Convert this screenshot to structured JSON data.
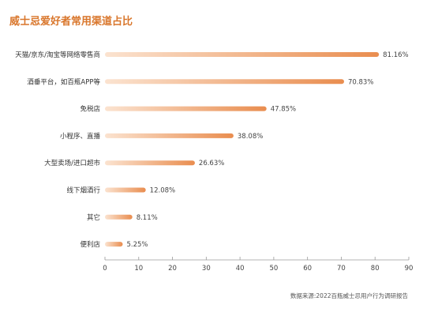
{
  "chart_data": {
    "type": "bar",
    "orientation": "horizontal",
    "title": "威士忌爱好者常用渠道占比",
    "categories": [
      "天猫/京东/淘宝等网络零售商",
      "酒垂平台，如百瓶APP等",
      "免税店",
      "小程序、直播",
      "大型卖场/进口超市",
      "线下烟酒行",
      "其它",
      "便利店"
    ],
    "values": [
      81.16,
      70.83,
      47.85,
      38.08,
      26.63,
      12.08,
      8.11,
      5.25
    ],
    "value_labels": [
      "81.16%",
      "70.83%",
      "47.85%",
      "38.08%",
      "26.63%",
      "12.08%",
      "8.11%",
      "5.25%"
    ],
    "xlim": [
      0,
      90
    ],
    "xticks": [
      0,
      10,
      20,
      30,
      40,
      50,
      60,
      70,
      80,
      90
    ],
    "grid": false,
    "colors": {
      "bar_start": "#fbe3d0",
      "bar_end": "#e98d4f",
      "title": "#d9762b"
    },
    "source": "数据来源:2022百瓶威士忌用户行为调研报告"
  }
}
